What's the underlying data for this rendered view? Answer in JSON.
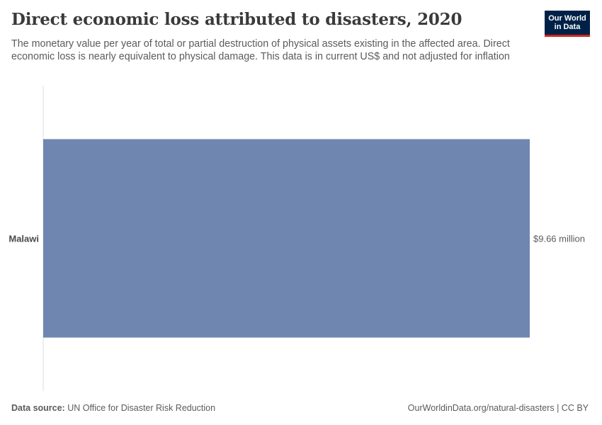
{
  "title": "Direct economic loss attributed to disasters, 2020",
  "subtitle": "The monetary value per year of total or partial destruction of physical assets existing in the affected area. Direct economic loss is nearly equivalent to physical damage. This data is in current US$ and not adjusted for inflation",
  "logo": {
    "line1": "Our World",
    "line2": "in Data"
  },
  "footer": {
    "source_label": "Data source:",
    "source_text": "UN Office for Disaster Risk Reduction",
    "link_text": "OurWorldinData.org/natural-disasters | CC BY"
  },
  "colors": {
    "bar": "#6f87b0",
    "axis": "#dddddd",
    "logo_bg": "#002147",
    "logo_accent": "#ce261e"
  },
  "chart_data": {
    "type": "bar",
    "orientation": "horizontal",
    "categories": [
      "Malawi"
    ],
    "values": [
      9660000
    ],
    "value_labels": [
      "$9.66 million"
    ],
    "xlim": [
      0,
      9660000
    ]
  }
}
